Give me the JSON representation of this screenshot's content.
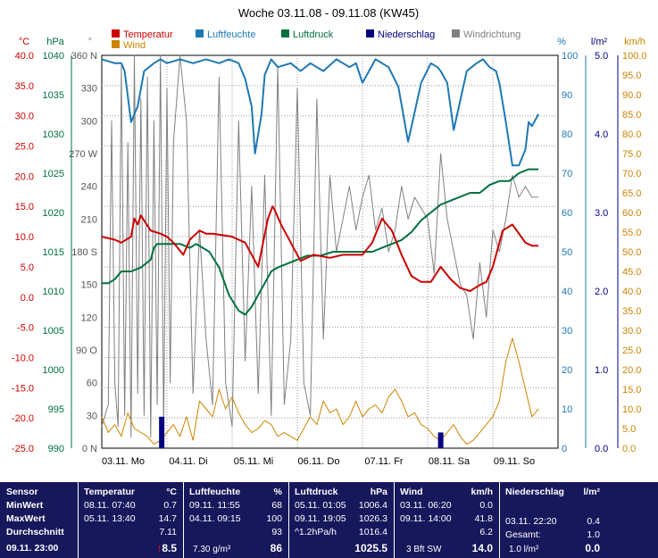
{
  "chart_data": {
    "type": "line",
    "title": "Woche 03.11.08 - 09.11.08 (KW45)",
    "x_range": [
      0,
      7
    ],
    "x_tick_labels": [
      "03.11. Mo",
      "04.11. Di",
      "05.11. Mi",
      "06.11. Do",
      "07.11. Fr",
      "08.11. Sa",
      "09.11. So"
    ],
    "grid": true,
    "legend_position": "top",
    "axes": {
      "temperature": {
        "unit": "°C",
        "min": -25,
        "max": 40,
        "ticks": [
          "40.0",
          "35.0",
          "30.0",
          "25.0",
          "20.0",
          "15.0",
          "10.0",
          "5.0",
          "0.0",
          "-5.0",
          "-10.0",
          "-15.0",
          "-20.0",
          "-25.0"
        ],
        "color": "#cc0000"
      },
      "pressure": {
        "unit": "hPa",
        "min": 990,
        "max": 1040,
        "ticks": [
          "1040",
          "1035",
          "1030",
          "1025",
          "1020",
          "1015",
          "1010",
          "1005",
          "1000",
          "995",
          "990"
        ],
        "color": "#007040"
      },
      "direction": {
        "unit": "°",
        "min": 0,
        "max": 360,
        "ticks": [
          "360 N",
          "330",
          "300",
          "270 W",
          "240",
          "210",
          "180 S",
          "150",
          "120",
          "90 O",
          "60",
          "30",
          "0 N"
        ],
        "color": "#555555"
      },
      "humidity": {
        "unit": "%",
        "min": 0,
        "max": 100,
        "ticks": [
          "100",
          "90",
          "80",
          "70",
          "60",
          "50",
          "40",
          "30",
          "20",
          "10",
          "0"
        ],
        "color": "#1e78b4"
      },
      "precipitation": {
        "unit": "l/m²",
        "min": 0,
        "max": 5,
        "ticks": [
          "5.0",
          "4.0",
          "3.0",
          "2.0",
          "1.0",
          "0.0"
        ],
        "color": "#000080"
      },
      "wind": {
        "unit": "km/h",
        "min": 0,
        "max": 100,
        "ticks": [
          "100.0",
          "95.0",
          "90.0",
          "85.0",
          "80.0",
          "75.0",
          "70.0",
          "65.0",
          "60.0",
          "55.0",
          "50.0",
          "45.0",
          "40.0",
          "35.0",
          "30.0",
          "25.0",
          "20.0",
          "15.0",
          "10.0",
          "5.0",
          "0.0"
        ],
        "color": "#cc8400"
      }
    },
    "series": [
      {
        "name": "Temperatur",
        "axis": "temperature",
        "color": "#cc0000",
        "x": [
          0,
          0.2,
          0.3,
          0.45,
          0.5,
          0.55,
          0.6,
          0.75,
          0.9,
          1.0,
          1.1,
          1.25,
          1.35,
          1.5,
          1.6,
          1.7,
          2.0,
          2.2,
          2.4,
          2.55,
          2.62,
          2.65,
          2.75,
          2.9,
          3.05,
          3.25,
          3.5,
          3.7,
          4.0,
          4.15,
          4.3,
          4.45,
          4.6,
          4.75,
          4.9,
          5.05,
          5.2,
          5.35,
          5.5,
          5.65,
          5.8,
          5.9,
          6.0,
          6.15,
          6.3,
          6.5,
          6.6,
          6.7
        ],
        "y": [
          10,
          9.5,
          9,
          10,
          13,
          12,
          13.5,
          11,
          10.5,
          10,
          9,
          7,
          9.5,
          11,
          10.5,
          10.5,
          10,
          9,
          5,
          13,
          15,
          14.5,
          12,
          9,
          6,
          7,
          6.5,
          7,
          7,
          9,
          13,
          11,
          7,
          3.5,
          2.5,
          2.5,
          5,
          3,
          1.5,
          1,
          2,
          2.5,
          5,
          11,
          12,
          9,
          8.5,
          8.5
        ]
      },
      {
        "name": "Wind",
        "axis": "wind",
        "color": "#cc8400",
        "x": [
          0,
          0.1,
          0.2,
          0.3,
          0.4,
          0.5,
          0.6,
          0.7,
          0.8,
          0.9,
          1.0,
          1.1,
          1.2,
          1.3,
          1.4,
          1.5,
          1.6,
          1.7,
          1.8,
          1.9,
          2.0,
          2.1,
          2.2,
          2.3,
          2.4,
          2.5,
          2.6,
          2.7,
          2.8,
          2.9,
          3.0,
          3.1,
          3.2,
          3.3,
          3.4,
          3.5,
          3.6,
          3.7,
          3.8,
          3.9,
          4.0,
          4.1,
          4.2,
          4.3,
          4.4,
          4.5,
          4.6,
          4.7,
          4.8,
          4.9,
          5.0,
          5.1,
          5.2,
          5.3,
          5.4,
          5.5,
          5.6,
          5.7,
          5.8,
          5.9,
          6.0,
          6.1,
          6.2,
          6.3,
          6.4,
          6.5,
          6.6,
          6.7
        ],
        "y": [
          8,
          4,
          6,
          3,
          9,
          5,
          4,
          3,
          1,
          2,
          4,
          6,
          3,
          8,
          2,
          12,
          10,
          8,
          15,
          10,
          13,
          9,
          6,
          4,
          5,
          7,
          6,
          3,
          4,
          3,
          2,
          5,
          8,
          6,
          12,
          9,
          10,
          6,
          8,
          12,
          8,
          10,
          11,
          9,
          13,
          15,
          12,
          8,
          9,
          6,
          5,
          3,
          2,
          4,
          6,
          3,
          1,
          2,
          4,
          6,
          8,
          12,
          22,
          28,
          22,
          15,
          8,
          10
        ]
      },
      {
        "name": "Luftfeuchte",
        "axis": "humidity",
        "color": "#1e78b4",
        "x": [
          0,
          0.2,
          0.3,
          0.35,
          0.45,
          0.55,
          0.65,
          0.8,
          0.9,
          1.0,
          1.2,
          1.4,
          1.6,
          1.8,
          1.95,
          2.1,
          2.2,
          2.3,
          2.35,
          2.45,
          2.5,
          2.6,
          2.7,
          2.9,
          3.05,
          3.2,
          3.4,
          3.6,
          3.8,
          3.9,
          4.0,
          4.1,
          4.2,
          4.4,
          4.55,
          4.7,
          4.9,
          5.05,
          5.15,
          5.2,
          5.3,
          5.4,
          5.6,
          5.75,
          5.85,
          5.95,
          6.05,
          6.1,
          6.2,
          6.3,
          6.4,
          6.5,
          6.55,
          6.6,
          6.7
        ],
        "y": [
          99,
          98,
          98,
          96,
          83,
          87,
          96,
          98,
          99,
          98,
          99,
          98,
          99,
          98,
          99,
          98,
          94,
          87,
          75,
          85,
          95,
          99,
          97,
          98,
          96,
          98,
          96,
          99,
          97,
          98,
          93,
          96,
          99,
          97,
          92,
          78,
          93,
          98,
          97,
          96,
          93,
          81,
          96,
          98,
          99,
          97,
          96,
          93,
          83,
          72,
          72,
          76,
          83,
          82,
          85
        ]
      },
      {
        "name": "Luftdruck",
        "axis": "pressure",
        "color": "#007040",
        "x": [
          0,
          0.1,
          0.2,
          0.3,
          0.45,
          0.6,
          0.75,
          0.8,
          0.85,
          1.0,
          1.2,
          1.35,
          1.45,
          1.65,
          1.8,
          1.95,
          2.1,
          2.2,
          2.3,
          2.4,
          2.5,
          2.6,
          2.7,
          2.85,
          3.0,
          3.15,
          3.35,
          3.55,
          3.7,
          3.85,
          4.0,
          4.15,
          4.3,
          4.45,
          4.6,
          4.75,
          4.9,
          5.05,
          5.2,
          5.35,
          5.5,
          5.65,
          5.8,
          5.95,
          6.1,
          6.25,
          6.4,
          6.55,
          6.7
        ],
        "y": [
          1011,
          1011,
          1011.5,
          1012.5,
          1012.5,
          1013,
          1014,
          1015.5,
          1016,
          1016,
          1016,
          1015.5,
          1016,
          1015,
          1013,
          1009.5,
          1007.5,
          1007,
          1008,
          1009.5,
          1011,
          1012.5,
          1013,
          1013.5,
          1014,
          1014.5,
          1014.5,
          1015,
          1015,
          1015,
          1015,
          1015,
          1015.5,
          1016,
          1016.5,
          1017.5,
          1019,
          1020,
          1021,
          1021.5,
          1022,
          1022.5,
          1022.5,
          1023.5,
          1024,
          1024,
          1025,
          1025.5,
          1025.5
        ]
      },
      {
        "name": "Niederschlag",
        "axis": "precipitation",
        "color": "#000080",
        "kind": "bar",
        "x": [
          0.92,
          5.2
        ],
        "y": [
          0.4,
          0.2
        ]
      },
      {
        "name": "Windrichtung",
        "axis": "direction",
        "color": "#808080",
        "x": [
          0,
          0.1,
          0.15,
          0.2,
          0.25,
          0.3,
          0.35,
          0.4,
          0.45,
          0.5,
          0.55,
          0.6,
          0.65,
          0.7,
          0.75,
          0.8,
          0.85,
          0.9,
          0.95,
          1.0,
          1.05,
          1.1,
          1.2,
          1.3,
          1.4,
          1.5,
          1.6,
          1.7,
          1.8,
          1.9,
          2.0,
          2.1,
          2.2,
          2.3,
          2.4,
          2.5,
          2.6,
          2.7,
          2.8,
          2.9,
          3.0,
          3.1,
          3.2,
          3.3,
          3.4,
          3.5,
          3.6,
          3.7,
          3.8,
          3.9,
          4.0,
          4.1,
          4.2,
          4.3,
          4.4,
          4.5,
          4.6,
          4.7,
          4.8,
          4.9,
          5.0,
          5.1,
          5.2,
          5.3,
          5.4,
          5.5,
          5.6,
          5.7,
          5.8,
          5.9,
          6.0,
          6.1,
          6.2,
          6.3,
          6.4,
          6.5,
          6.6,
          6.7
        ],
        "y": [
          20,
          40,
          300,
          60,
          20,
          350,
          30,
          280,
          10,
          360,
          50,
          320,
          30,
          340,
          10,
          300,
          40,
          360,
          20,
          330,
          60,
          280,
          360,
          300,
          50,
          200,
          100,
          40,
          340,
          60,
          20,
          300,
          80,
          240,
          50,
          250,
          30,
          350,
          40,
          100,
          330,
          60,
          30,
          320,
          100,
          250,
          180,
          210,
          240,
          200,
          230,
          250,
          200,
          220,
          180,
          200,
          240,
          210,
          230,
          220,
          210,
          160,
          270,
          210,
          180,
          150,
          140,
          100,
          170,
          120,
          200,
          180,
          210,
          250,
          230,
          240,
          230,
          230
        ]
      }
    ]
  }
}
